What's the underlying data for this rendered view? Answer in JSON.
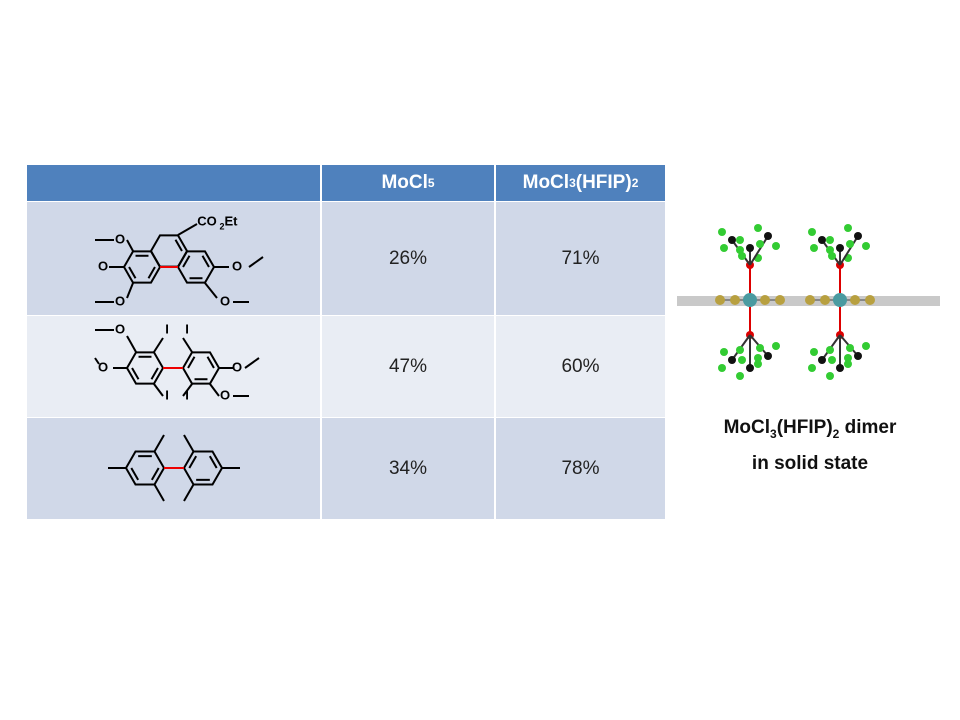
{
  "table": {
    "header": [
      {
        "text": "MoCl",
        "sub": "5"
      },
      {
        "text": "MoCl",
        "sub": "3",
        "text2": "(HFIP)",
        "sub2": "2"
      }
    ],
    "rows": [
      {
        "structure": {
          "labels": [
            "CO",
            "2",
            "Et",
            "O",
            "O",
            "O",
            "O",
            "O"
          ]
        },
        "values": [
          "26%",
          "71%"
        ]
      },
      {
        "structure": {
          "labels": [
            "O",
            "O",
            "I",
            "I",
            "I",
            "I",
            "O",
            "O"
          ]
        },
        "values": [
          "47%",
          "60%"
        ]
      },
      {
        "structure": {
          "labels": []
        },
        "values": [
          "34%",
          "78%"
        ]
      }
    ]
  },
  "caption": {
    "text": "MoCl",
    "sub": "3",
    "text2": "(HFIP)",
    "sub2": "2",
    "text3": " dimer",
    "line2": "in solid state"
  }
}
